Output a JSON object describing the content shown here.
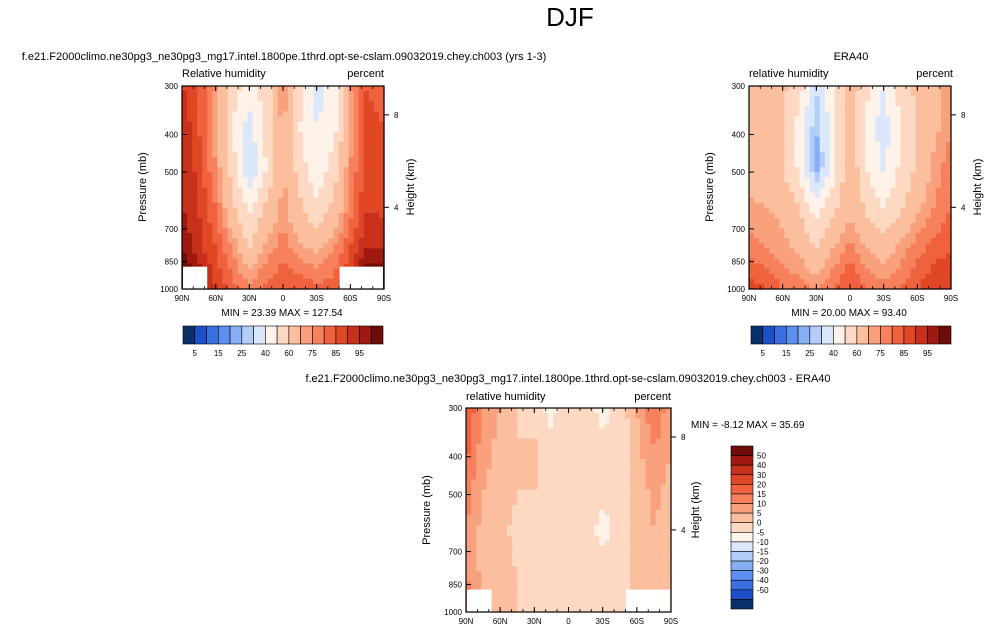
{
  "page_title": "DJF",
  "colors": {
    "rh_scale": [
      "#08306b",
      "#1c4fc8",
      "#3a6fe0",
      "#5d8ff0",
      "#85aef5",
      "#b2cdf8",
      "#dbe8fb",
      "#fff2e8",
      "#fdd9c3",
      "#fcbf9e",
      "#f9a17c",
      "#f6815c",
      "#f0623e",
      "#e04724",
      "#c7301a",
      "#9e1a10",
      "#6e0c07"
    ],
    "diff_scale": [
      "#08306b",
      "#1c4fc8",
      "#3a6fe0",
      "#5d8ff0",
      "#85aef5",
      "#b2cdf8",
      "#dbe8fb",
      "#fff2e8",
      "#fdd9c3",
      "#fcbf9e",
      "#f9a17c",
      "#f6815c",
      "#f0623e",
      "#e04724",
      "#c7301a",
      "#9e1a10",
      "#6e0c07"
    ]
  },
  "chart_data": [
    {
      "id": "model",
      "type": "heatmap",
      "title": "f.e21.F2000climo.ne30pg3_ne30pg3_mg17.intel.1800pe.1thrd.opt-se-cslam.09032019.chey.ch003 (yrs 1-3)",
      "left_label": "Relative humidity",
      "right_label": "percent",
      "ylabel": "Pressure (mb)",
      "y2label": "Height (km)",
      "x": [
        "90N",
        "60N",
        "30N",
        "0",
        "30S",
        "60S",
        "90S"
      ],
      "y": [
        300,
        400,
        500,
        700,
        850,
        1000
      ],
      "y2": [
        "8",
        "4"
      ],
      "ylim": [
        300,
        1000
      ],
      "stats": "MIN = 23.39   MAX = 127.54",
      "min": 23.39,
      "max": 127.54,
      "z": [
        [
          90,
          85,
          75,
          55,
          45,
          55,
          75,
          55,
          35,
          45,
          75,
          85,
          80
        ],
        [
          95,
          85,
          72,
          50,
          35,
          55,
          72,
          50,
          40,
          45,
          72,
          88,
          85
        ],
        [
          95,
          88,
          75,
          55,
          30,
          50,
          72,
          55,
          42,
          55,
          75,
          88,
          85
        ],
        [
          95,
          90,
          80,
          62,
          48,
          62,
          72,
          62,
          52,
          62,
          78,
          90,
          88
        ],
        [
          100,
          92,
          85,
          75,
          60,
          72,
          78,
          72,
          68,
          75,
          85,
          95,
          95
        ],
        [
          110,
          100,
          90,
          82,
          78,
          82,
          85,
          85,
          82,
          82,
          92,
          110,
          110
        ]
      ],
      "missing": "near surface at 90N-65N and 60S-90S"
    },
    {
      "id": "obs",
      "type": "heatmap",
      "title": "ERA40",
      "left_label": "relative humidity",
      "right_label": "percent",
      "ylabel": "Pressure (mb)",
      "y2label": "Height (km)",
      "x": [
        "90N",
        "60N",
        "30N",
        "0",
        "30S",
        "60S",
        "90S"
      ],
      "y": [
        300,
        400,
        500,
        700,
        850,
        1000
      ],
      "y2": [
        "8",
        "4"
      ],
      "ylim": [
        300,
        1000
      ],
      "stats": "MIN = 20.00   MAX = 93.40",
      "min": 20.0,
      "max": 93.4,
      "z": [
        [
          65,
          65,
          62,
          55,
          30,
          50,
          65,
          55,
          40,
          55,
          62,
          68,
          72
        ],
        [
          62,
          62,
          60,
          45,
          25,
          45,
          65,
          45,
          35,
          50,
          62,
          68,
          75
        ],
        [
          65,
          62,
          60,
          48,
          20,
          45,
          68,
          50,
          38,
          52,
          62,
          72,
          78
        ],
        [
          72,
          70,
          68,
          60,
          45,
          58,
          68,
          58,
          50,
          58,
          68,
          75,
          80
        ],
        [
          78,
          75,
          72,
          68,
          60,
          70,
          78,
          70,
          65,
          72,
          78,
          82,
          85
        ],
        [
          88,
          85,
          80,
          78,
          75,
          80,
          85,
          80,
          78,
          80,
          85,
          90,
          90
        ]
      ]
    },
    {
      "id": "diff",
      "type": "heatmap",
      "title": "f.e21.F2000climo.ne30pg3_ne30pg3_mg17.intel.1800pe.1thrd.opt-se-cslam.09032019.chey.ch003 - ERA40",
      "left_label": "relative humidity",
      "right_label": "percent",
      "ylabel": "Pressure (mb)",
      "y2label": "Height (km)",
      "x": [
        "90N",
        "60N",
        "30N",
        "0",
        "30S",
        "60S",
        "90S"
      ],
      "y": [
        300,
        400,
        500,
        700,
        850,
        1000
      ],
      "y2": [
        "8",
        "4"
      ],
      "ylim": [
        300,
        1000
      ],
      "stats": "MIN = -8.12   MAX = 35.69",
      "min": -8.12,
      "max": 35.69,
      "z": [
        [
          25,
          15,
          10,
          5,
          2,
          -2,
          5,
          2,
          -2,
          2,
          10,
          20,
          12
        ],
        [
          22,
          12,
          8,
          5,
          6,
          2,
          5,
          5,
          2,
          0,
          8,
          15,
          10
        ],
        [
          18,
          10,
          8,
          5,
          5,
          4,
          4,
          3,
          2,
          2,
          6,
          12,
          8
        ],
        [
          15,
          8,
          6,
          4,
          3,
          3,
          4,
          3,
          -2,
          2,
          6,
          10,
          6
        ],
        [
          15,
          8,
          6,
          5,
          3,
          3,
          4,
          4,
          3,
          4,
          6,
          8,
          8
        ],
        [
          20,
          12,
          8,
          5,
          3,
          3,
          3,
          5,
          3,
          3,
          5,
          10,
          10
        ]
      ],
      "missing": "near surface at 90N-65N and 60S-90S"
    }
  ],
  "rh_colorbar": {
    "labels": [
      "5",
      "15",
      "25",
      "40",
      "60",
      "75",
      "85",
      "95"
    ]
  },
  "diff_colorbar": {
    "labels": [
      "50",
      "40",
      "30",
      "20",
      "15",
      "10",
      "5",
      "0",
      "-5",
      "-10",
      "-15",
      "-20",
      "-30",
      "-40",
      "-50"
    ]
  }
}
